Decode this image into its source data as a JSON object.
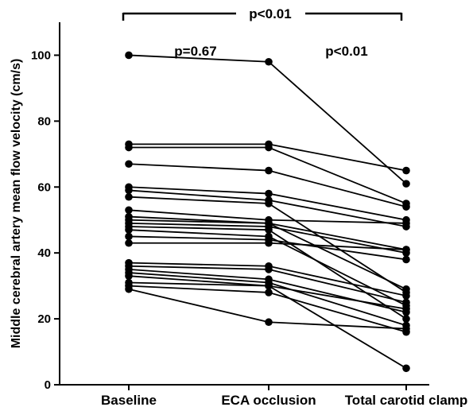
{
  "chart_data": {
    "type": "line",
    "categories": [
      "Baseline",
      "ECA occlusion",
      "Total carotid clamp"
    ],
    "ylabel": "Middle cerebral artery mean flow velocity (cm/s)",
    "ylim": [
      0,
      110
    ],
    "yticks": [
      "0",
      "20",
      "40",
      "60",
      "80",
      "100"
    ],
    "grid": false,
    "annotations": {
      "overall": "p<0.01",
      "baseline_vs_eca": "p=0.67",
      "eca_vs_clamp": "p<0.01"
    },
    "subjects": [
      [
        100,
        98,
        61
      ],
      [
        73,
        73,
        65
      ],
      [
        72,
        72,
        55
      ],
      [
        67,
        65,
        54
      ],
      [
        60,
        58,
        50
      ],
      [
        59,
        56,
        48
      ],
      [
        57,
        55,
        28
      ],
      [
        53,
        50,
        49
      ],
      [
        51,
        49,
        41
      ],
      [
        50,
        49,
        29
      ],
      [
        49,
        48,
        40
      ],
      [
        48,
        47,
        20
      ],
      [
        47,
        45,
        24
      ],
      [
        45,
        44,
        38
      ],
      [
        43,
        43,
        41
      ],
      [
        37,
        36,
        27
      ],
      [
        36,
        35,
        25
      ],
      [
        35,
        32,
        22
      ],
      [
        34,
        31,
        18
      ],
      [
        33,
        30,
        23
      ],
      [
        31,
        30,
        5
      ],
      [
        30,
        28,
        16
      ],
      [
        29,
        19,
        17
      ]
    ]
  }
}
